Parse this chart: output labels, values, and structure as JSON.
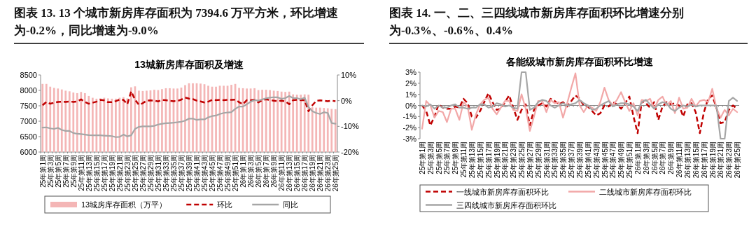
{
  "chart_data": [
    {
      "type": "bar",
      "title": "图表 13. 13 个城市新房库存面积为 7394.6 万平方米，环比增速为-0.2%，同比增速为-9.0%",
      "subtitle": "13城新房库存面积及增速",
      "categories": [
        "25年第1周",
        null,
        "25年第3周",
        null,
        "25年第5周",
        null,
        "25年第7周",
        null,
        "25年第9周",
        null,
        "25年第11周",
        null,
        "25年第13周",
        null,
        "25年第15周",
        null,
        "25年第17周",
        null,
        "25年第19周",
        null,
        "25年第21周",
        null,
        "25年第23周",
        null,
        "25年第25周",
        null,
        "25年第27周",
        null,
        "25年第29周",
        null,
        "25年第31周",
        null,
        "25年第33周",
        null,
        "25年第35周",
        null,
        "25年第37周",
        null,
        "25年第39周",
        null,
        "25年第41周",
        null,
        "25年第43周",
        null,
        "25年第45周",
        null,
        "25年第47周",
        null,
        "25年第49周",
        null,
        "25年第51周",
        null,
        "26年第1周",
        null,
        "26年第3周",
        null,
        "26年第5周",
        null,
        "26年第7周",
        null,
        "26年第9周",
        null,
        "26年第11周",
        null,
        "26年第13周",
        null,
        "26年第15周",
        null,
        "26年第17周",
        null,
        "26年第19周",
        null,
        "26年第21周",
        null,
        "26年第23周",
        null,
        "26年第25周"
      ],
      "series": [
        {
          "name": "13城房库存面积（万平）",
          "type": "bar",
          "color": "#f4b6b6",
          "values": [
            8210,
            8210,
            8120,
            8080,
            8060,
            8030,
            7990,
            7970,
            7930,
            7910,
            7950,
            7910,
            7820,
            7760,
            7730,
            7740,
            7760,
            7740,
            7730,
            7730,
            7760,
            7780,
            7740,
            8100,
            8130,
            7990,
            7980,
            7990,
            8000,
            8020,
            8010,
            8040,
            8070,
            8070,
            8060,
            8060,
            8090,
            8170,
            8230,
            8230,
            8230,
            8220,
            8200,
            8150,
            8120,
            8120,
            8150,
            8150,
            8150,
            8180,
            8210,
            8080,
            8070,
            8060,
            8060,
            8070,
            8010,
            8020,
            8020,
            8010,
            7990,
            7980,
            7960,
            7950,
            7960,
            7870,
            7860,
            7860,
            7870,
            7860,
            7450,
            7440,
            7440,
            7430,
            7420,
            7400,
            7390
          ]
        },
        {
          "name": "环比",
          "type": "line",
          "axis": "y2",
          "color": "#c00000",
          "line_style": "dashed",
          "values": [
            -1.8,
            -0.5,
            -1.2,
            -0.8,
            -0.5,
            -0.4,
            -0.5,
            -0.3,
            -0.5,
            -0.3,
            0.5,
            -0.5,
            -1.2,
            -0.8,
            -0.4,
            0.3,
            0.1,
            -0.6,
            -0.6,
            -0.2,
            0.4,
            0.3,
            -1.4,
            3.6,
            0.4,
            -1.6,
            -1.0,
            0,
            0.1,
            0,
            -0.3,
            0.3,
            0.2,
            -0.1,
            -0.2,
            -0.1,
            0.4,
            1.2,
            0.8,
            0.6,
            0,
            -0.3,
            -0.7,
            -0.4,
            0.3,
            0.2,
            0.3,
            0.2,
            0.3,
            0.3,
            0.4,
            -0.6,
            -1.4,
            0.2,
            0.2,
            0.3,
            -0.7,
            0.2,
            0.5,
            0.2,
            0,
            -0.2,
            0,
            -0.3,
            -1.4,
            0.2,
            0.3,
            0.2,
            0.2,
            -4.1,
            -1.8,
            -0.1,
            0.1,
            0,
            -0.2,
            0,
            -0.2
          ]
        },
        {
          "name": "同比",
          "type": "line",
          "axis": "y2",
          "color": "#a6a6a6",
          "line_style": "solid",
          "values": [
            -10.5,
            -10.4,
            -10.8,
            -11.0,
            -10.6,
            -11.4,
            -11.8,
            -11.8,
            -12.6,
            -12.9,
            -13.0,
            -13.2,
            -13.4,
            -13.5,
            -13.5,
            -13.5,
            -13.6,
            -13.7,
            -13.8,
            -14.2,
            -14.1,
            -13.2,
            -13.9,
            -13.5,
            -11.0,
            -10.2,
            -10.0,
            -10.0,
            -10.0,
            -9.8,
            -9.3,
            -9.0,
            -8.8,
            -8.7,
            -8.6,
            -8.4,
            -8.2,
            -7.8,
            -7.0,
            -7.0,
            -7.5,
            -7.3,
            -7.3,
            -6.5,
            -6.0,
            -5.8,
            -5.2,
            -4.8,
            -4.6,
            -4.5,
            -3.2,
            -2.3,
            -2.3,
            -1.4,
            -0.4,
            0.2,
            0,
            0.5,
            0.9,
            1.2,
            1.3,
            1.3,
            0.7,
            1.0,
            1.8,
            1.0,
            1.0,
            0.5,
            1.2,
            -2.5,
            -4.1,
            -4.8,
            -5.2,
            -4.5,
            -4.8,
            -8.7,
            -9.0
          ]
        }
      ],
      "ylim": [
        6000,
        8500
      ],
      "yticks": [
        6000,
        6500,
        7000,
        7500,
        8000,
        8500
      ],
      "y2lim": [
        -20,
        10
      ],
      "y2ticks": [
        {
          "value": -20,
          "label": "-20%"
        },
        {
          "value": -10,
          "label": "-10%"
        },
        {
          "value": 0,
          "label": "0%"
        },
        {
          "value": 10,
          "label": "10%"
        }
      ],
      "legend": "bottom"
    },
    {
      "type": "line",
      "title": "图表 14. 一、二、三四线城市新房库存面积环比增速分别为-0.3%、-0.6%、0.4%",
      "subtitle": "各能级城市新房库存面积环比增速",
      "categories": [
        "25年第1周",
        null,
        "25年第3周",
        null,
        "25年第5周",
        null,
        "25年第7周",
        null,
        "25年第9周",
        null,
        "25年第11周",
        null,
        "25年第13周",
        null,
        "25年第15周",
        null,
        "25年第17周",
        null,
        "25年第19周",
        null,
        "25年第21周",
        null,
        "25年第23周",
        null,
        "25年第25周",
        null,
        "25年第27周",
        null,
        "25年第29周",
        null,
        "25年第31周",
        null,
        "25年第33周",
        null,
        "25年第35周",
        null,
        "25年第37周",
        null,
        "25年第39周",
        null,
        "25年第41周",
        null,
        "25年第43周",
        null,
        "25年第45周",
        null,
        "25年第47周",
        null,
        "25年第49周",
        null,
        "25年第51周",
        null,
        "26年第1周",
        null,
        "26年第3周",
        null,
        "26年第5周",
        null,
        "26年第7周",
        null,
        "26年第9周",
        null,
        "26年第11周",
        null,
        "26年第13周",
        null,
        "26年第15周",
        null,
        "26年第17周",
        null,
        "26年第19周",
        null,
        "26年第21周",
        null,
        "26年第23周",
        null,
        "26年第25周"
      ],
      "series": [
        {
          "name": "一线城市新房库存面积环比",
          "color": "#c00000",
          "line_style": "dashed",
          "values": [
            0,
            -0.5,
            -1.8,
            -1.0,
            0.1,
            -0.2,
            -0.3,
            -0.3,
            -0.1,
            -0.2,
            0.6,
            0.2,
            -1.0,
            -1.1,
            -0.5,
            0.3,
            1.1,
            0.3,
            -0.4,
            -0.3,
            0.3,
            0.9,
            -0.2,
            -1.3,
            -0.4,
            0.1,
            -1.8,
            -0.4,
            0,
            0.2,
            -0.1,
            0.6,
            0.4,
            0.1,
            0.3,
            -0.1,
            0.4,
            0.9,
            0.6,
            0,
            -0.1,
            -0.5,
            -0.9,
            -0.7,
            0,
            -0.1,
            0.3,
            0.1,
            -0.3,
            0.2,
            0.8,
            -1.0,
            -2.5,
            0.4,
            0.2,
            -0.2,
            0.3,
            -1.3,
            -0.1,
            0.3,
            0.1,
            0.2,
            0,
            -1.0,
            0.1,
            0.2,
            -0.6,
            -2.5,
            -0.6,
            0.6,
            0.9,
            -0.2,
            -1.6,
            -1.5,
            -0.4,
            0,
            -0.3
          ]
        },
        {
          "name": "二线城市新房库存面积环比",
          "color": "#f2a8a8",
          "line_style": "solid",
          "values": [
            -2.1,
            0.4,
            0,
            -1.1,
            -0.5,
            -0.6,
            -1.5,
            -0.3,
            -0.3,
            -1.3,
            0.3,
            -0.1,
            -2.2,
            -0.8,
            0.1,
            0.5,
            0.7,
            -0.3,
            -0.8,
            -0.2,
            0.4,
            0.4,
            -0.4,
            -0.5,
            1.0,
            -0.3,
            -2.3,
            -1.0,
            0.4,
            0.4,
            -0.6,
            0.5,
            0.2,
            0.3,
            -1.1,
            0.2,
            1.6,
            2.9,
            0,
            -0.6,
            0,
            -0.2,
            -0.5,
            0.3,
            1.6,
            0.5,
            0,
            0.5,
            1.2,
            0.3,
            -0.5,
            0.2,
            -0.9,
            0.5,
            0.4,
            0.6,
            -0.3,
            0.5,
            0.8,
            0,
            0.4,
            -0.7,
            0.7,
            -0.3,
            -0.2,
            0.6,
            -0.1,
            0.4,
            0.5,
            0.3,
            1.5,
            -0.2,
            -1.1,
            -0.4,
            -0.9,
            -0.3,
            -0.6
          ]
        },
        {
          "name": "三四线城市新房库存面积环比",
          "color": "#a6a6a6",
          "line_style": "solid",
          "values": [
            0,
            -0.1,
            0.1,
            -0.3,
            0,
            -0.2,
            -0.2,
            0,
            0.1,
            -0.2,
            -0.2,
            -0.3,
            -0.2,
            -0.2,
            0.1,
            0.1,
            -0.2,
            -0.1,
            0.2,
            0.1,
            -0.1,
            0,
            -0.2,
            -0.3,
            3,
            3,
            -0.4,
            -0.2,
            0.3,
            0.5,
            0.4,
            0,
            -0.2,
            0,
            0.2,
            0,
            0.1,
            0.2,
            0.5,
            0.2,
            0,
            -0.4,
            -0.3,
            0,
            0.2,
            0.4,
            -0.1,
            0.1,
            0.2,
            0.2,
            0.1,
            -0.1,
            -0.5,
            0.3,
            0.5,
            0.1,
            -0.3,
            0.1,
            0.3,
            0.2,
            -0.3,
            -0.5,
            -0.2,
            0,
            -0.1,
            0.1,
            -0.1,
            0,
            0,
            0,
            0,
            0,
            -3,
            -3,
            0.4,
            0.7,
            0.4
          ]
        }
      ],
      "ylim": [
        -3,
        3
      ],
      "yticks": [
        {
          "value": -3,
          "label": "-3%"
        },
        {
          "value": -2,
          "label": "-2%"
        },
        {
          "value": -1,
          "label": "-1%"
        },
        {
          "value": 0,
          "label": "0%"
        },
        {
          "value": 1,
          "label": "1%"
        },
        {
          "value": 2,
          "label": "2%"
        },
        {
          "value": 3,
          "label": "3%"
        }
      ],
      "legend": "bottom"
    }
  ]
}
